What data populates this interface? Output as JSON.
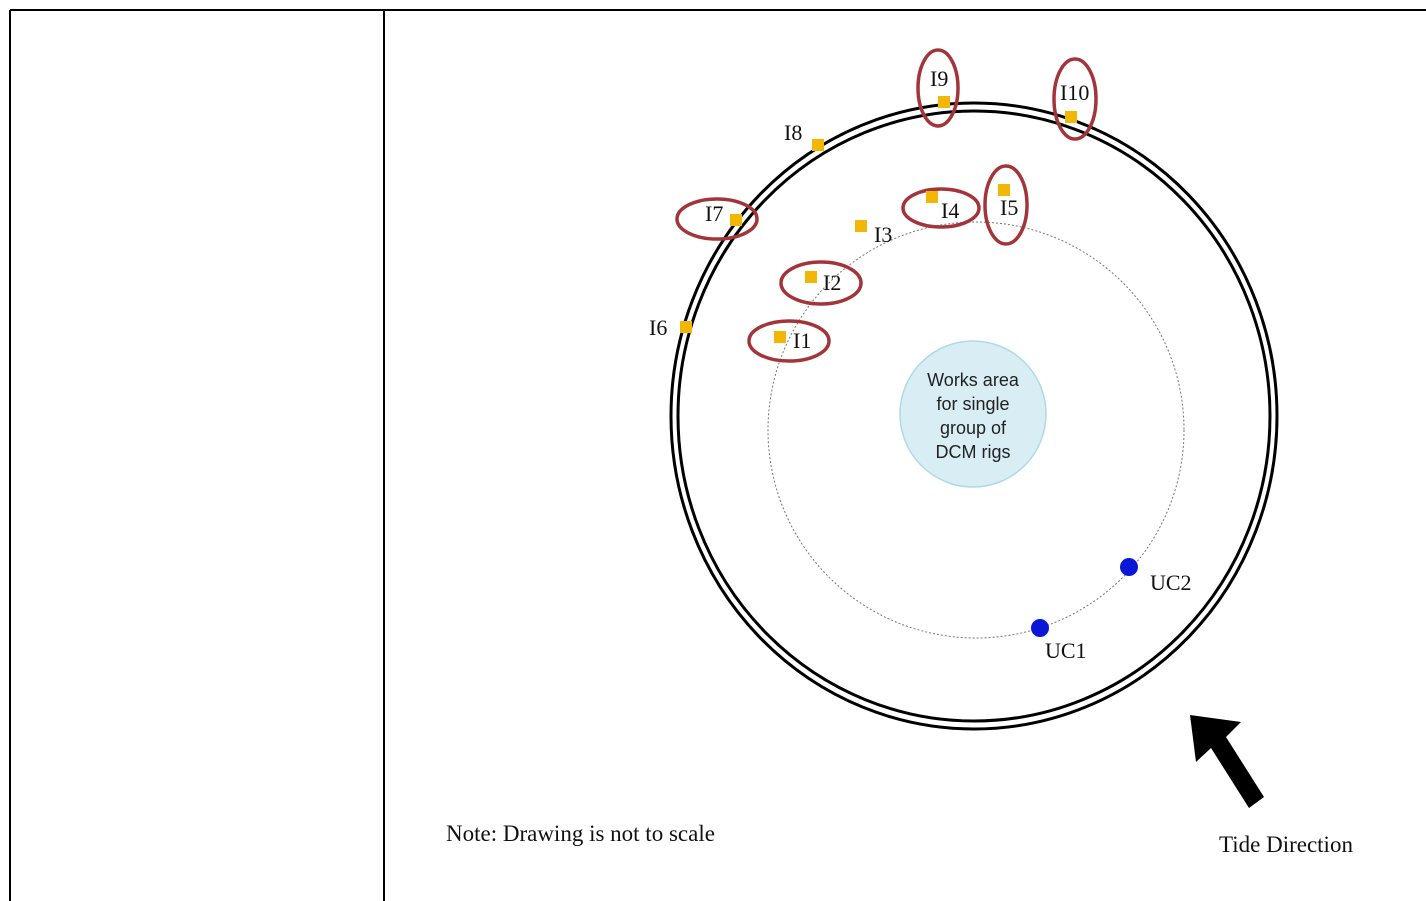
{
  "diagram": {
    "works_area_lines": [
      "Works area",
      "for single",
      "group of",
      "DCM rigs"
    ],
    "markers": [
      {
        "id": "I1",
        "label": "I1",
        "circled": true
      },
      {
        "id": "I2",
        "label": "I2",
        "circled": true
      },
      {
        "id": "I3",
        "label": "I3",
        "circled": false
      },
      {
        "id": "I4",
        "label": "I4",
        "circled": true
      },
      {
        "id": "I5",
        "label": "I5",
        "circled": true
      },
      {
        "id": "I6",
        "label": "I6",
        "circled": false
      },
      {
        "id": "I7",
        "label": "I7",
        "circled": true
      },
      {
        "id": "I8",
        "label": "I8",
        "circled": false
      },
      {
        "id": "I9",
        "label": "I9",
        "circled": true
      },
      {
        "id": "I10",
        "label": "I10",
        "circled": true
      }
    ],
    "uc_points": [
      {
        "id": "UC1",
        "label": "UC1"
      },
      {
        "id": "UC2",
        "label": "UC2"
      }
    ],
    "note": "Note: Drawing is not to scale",
    "tide_label": "Tide Direction",
    "colors": {
      "marker_fill": "#F2B705",
      "uc_fill": "#0A18D6",
      "circle_highlight": "#A3353A",
      "works_area_fill": "#D8EEF4",
      "works_area_stroke": "#AEDAE6",
      "ring_stroke": "#000000",
      "dotted_ring": "#777777"
    }
  }
}
